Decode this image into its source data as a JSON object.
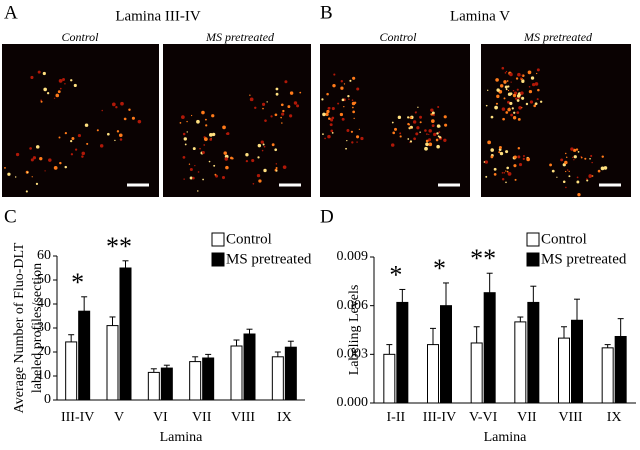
{
  "panels": [
    {
      "letter": "A",
      "title": "Lamina III-IV",
      "images": [
        "Control",
        "MS pretreated"
      ]
    },
    {
      "letter": "B",
      "title": "Lamina V",
      "images": [
        "Control",
        "MS pretreated"
      ]
    }
  ],
  "chart_data": [
    {
      "type": "bar",
      "letter": "C",
      "ylabel": [
        "Average Number of Fluo-DLT",
        "labeled profiles/section"
      ],
      "xlabel": "Lamina",
      "categories": [
        "III-IV",
        "V",
        "VI",
        "VII",
        "VIII",
        "IX"
      ],
      "series": [
        {
          "name": "Control",
          "color": "#ffffff",
          "values": [
            24.2,
            31,
            11.5,
            16,
            22.5,
            18
          ],
          "errors": [
            3,
            3.6,
            1.5,
            2,
            2.5,
            2
          ]
        },
        {
          "name": "MS pretreated",
          "color": "#000000",
          "values": [
            37,
            55,
            13.3,
            17.5,
            27.5,
            22
          ],
          "errors": [
            6,
            3,
            1.2,
            1.5,
            2,
            2.5
          ]
        }
      ],
      "significance": [
        "*",
        "**",
        null,
        null,
        null,
        null
      ],
      "ylim": [
        0,
        60
      ],
      "yticks": [
        0,
        10,
        20,
        30,
        40,
        50,
        60
      ]
    },
    {
      "type": "bar",
      "letter": "D",
      "ylabel": [
        "Labeling Levels"
      ],
      "xlabel": "Lamina",
      "categories": [
        "I-II",
        "III-IV",
        "V-VI",
        "VII",
        "VIII",
        "IX"
      ],
      "series": [
        {
          "name": "Control",
          "color": "#ffffff",
          "values": [
            0.003,
            0.0036,
            0.0037,
            0.005,
            0.004,
            0.0034
          ],
          "errors": [
            0.0006,
            0.001,
            0.001,
            0.0003,
            0.0007,
            0.0002
          ]
        },
        {
          "name": "MS pretreated",
          "color": "#000000",
          "values": [
            0.0062,
            0.006,
            0.0068,
            0.0062,
            0.0051,
            0.0041
          ],
          "errors": [
            0.0008,
            0.0014,
            0.0012,
            0.001,
            0.0013,
            0.0011
          ]
        }
      ],
      "significance": [
        "*",
        "*",
        "**",
        null,
        null,
        null
      ],
      "ylim": [
        0,
        0.009
      ],
      "yticks": [
        {
          "value": 0,
          "label": "0.000"
        },
        {
          "value": 0.003,
          "label": "0.003"
        },
        {
          "value": 0.006,
          "label": "0.006"
        },
        {
          "value": 0.009,
          "label": "0.009"
        }
      ]
    }
  ]
}
